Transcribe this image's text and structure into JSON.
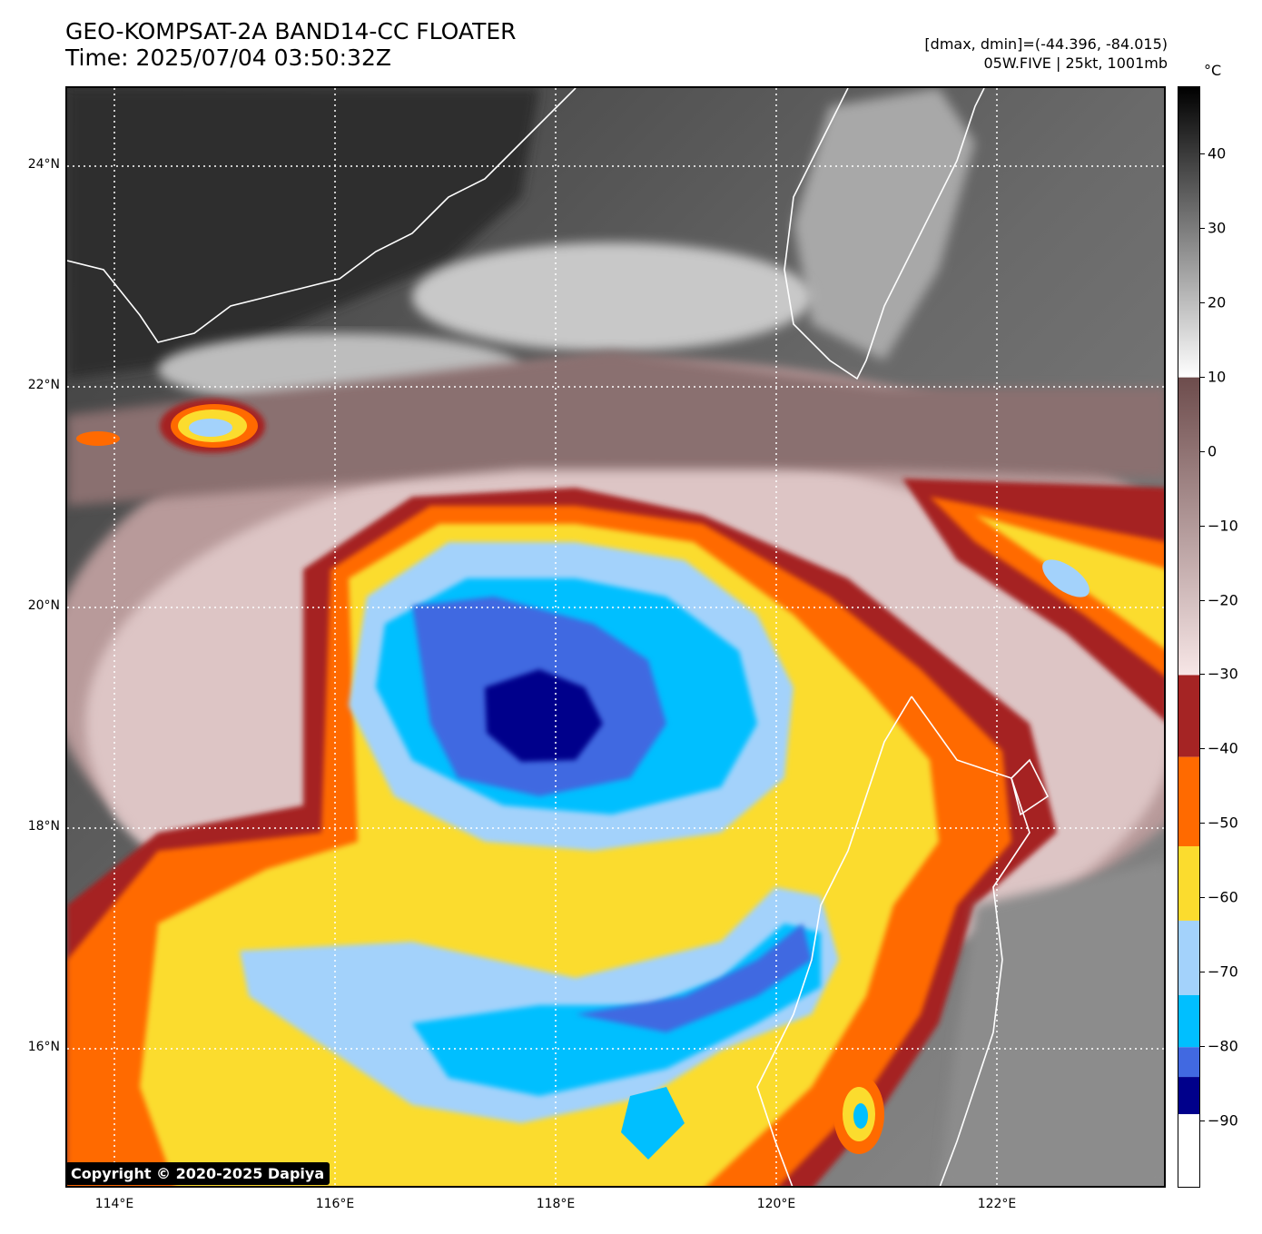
{
  "header": {
    "title_line1": "GEO-KOMPSAT-2A BAND14-CC FLOATER",
    "title_line2": "Time: 2025/07/04 03:50:32Z",
    "info_line1": "[dmax, dmin]=(-44.396, -84.015)",
    "info_line2": "05W.FIVE | 25kt, 1001mb"
  },
  "map": {
    "lat_labels": [
      "24°N",
      "22°N",
      "20°N",
      "18°N",
      "16°N"
    ],
    "lon_labels": [
      "114°E",
      "116°E",
      "118°E",
      "120°E",
      "122°E"
    ],
    "copyright": "Copyright © 2020-2025 Dapiya"
  },
  "colorbar": {
    "unit": "°C",
    "tick_labels": [
      "40",
      "30",
      "20",
      "10",
      "0",
      "−10",
      "−20",
      "−30",
      "−40",
      "−50",
      "−60",
      "−70",
      "−80",
      "−90"
    ],
    "tick_values": [
      40,
      30,
      20,
      10,
      0,
      -10,
      -20,
      -30,
      -40,
      -50,
      -60,
      -70,
      -80,
      -90
    ],
    "range": [
      -99,
      49
    ],
    "color_bands": [
      {
        "from": 49,
        "to": 10,
        "colors": [
          "#000000",
          "#ffffff"
        ]
      },
      {
        "from": 10,
        "to": -30,
        "colors": [
          "#6d4c4c",
          "#f7e6e6"
        ]
      },
      {
        "from": -30,
        "to": -41,
        "color": "#a52424"
      },
      {
        "from": -41,
        "to": -53,
        "color": "#ff6a00"
      },
      {
        "from": -53,
        "to": -63,
        "color": "#fbdc2e"
      },
      {
        "from": -63,
        "to": -73,
        "color": "#a3d2fb"
      },
      {
        "from": -73,
        "to": -80,
        "color": "#00bfff"
      },
      {
        "from": -80,
        "to": -84,
        "color": "#4169e1"
      },
      {
        "from": -84,
        "to": -89,
        "color": "#00008b"
      },
      {
        "from": -89,
        "to": -99,
        "color": "#ffffff"
      }
    ]
  }
}
